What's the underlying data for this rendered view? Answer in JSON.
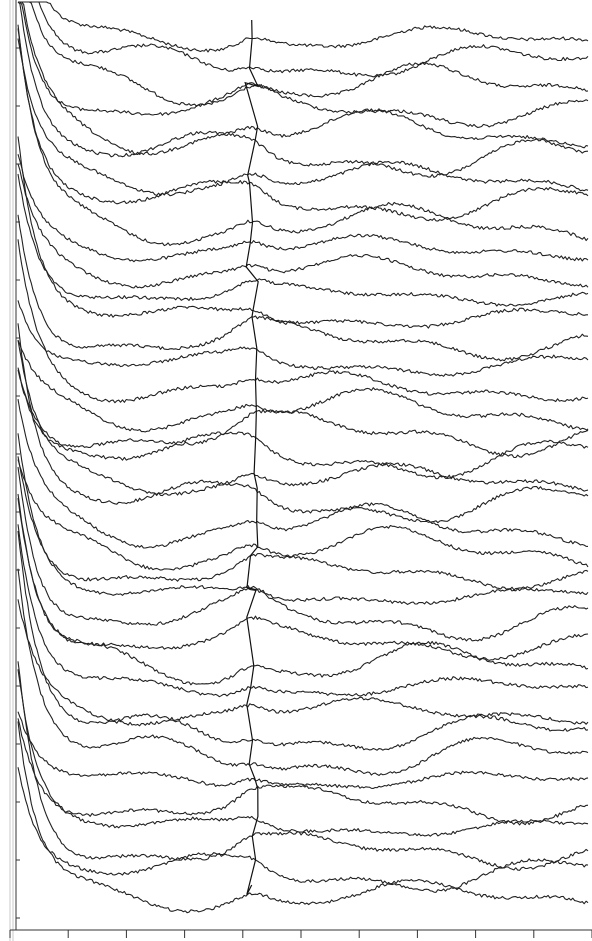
{
  "chart_data": {
    "type": "line",
    "title": "",
    "xlabel": "",
    "ylabel": "",
    "series_count": 38,
    "x_range": [
      0,
      1
    ],
    "x_ticks_count": 11,
    "y_ticks_count": 16,
    "marker_position": 0.41,
    "grid": false,
    "legend": "none",
    "stroke_color": "#222222",
    "background_color": "#ffffff"
  }
}
